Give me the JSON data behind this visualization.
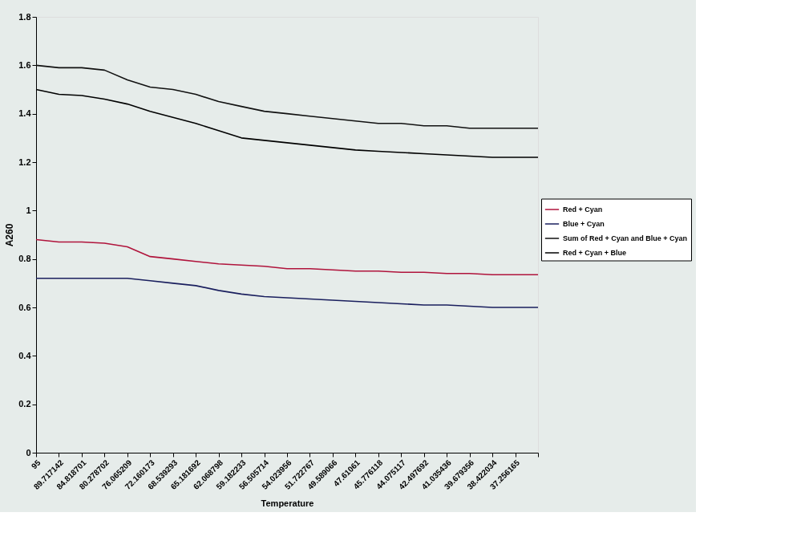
{
  "chart_data": {
    "type": "line",
    "xlabel": "Temperature",
    "ylabel": "A260",
    "categories": [
      "95",
      "89.717142",
      "84.818701",
      "80.278702",
      "76.065209",
      "72.160173",
      "68.539293",
      "65.181692",
      "62.068798",
      "59.182233",
      "56.505714",
      "54.023956",
      "51.722767",
      "49.589066",
      "47.61061",
      "45.776118",
      "44.075117",
      "42.497692",
      "41.035436",
      "39.679356",
      "38.422034",
      "37.256165",
      null
    ],
    "series": [
      {
        "name": "Red + Cyan",
        "color": "#b0143c",
        "values": [
          0.88,
          0.87,
          0.87,
          0.865,
          0.85,
          0.81,
          0.8,
          0.79,
          0.78,
          0.775,
          0.77,
          0.76,
          0.76,
          0.755,
          0.75,
          0.75,
          0.745,
          0.745,
          0.74,
          0.74,
          0.735,
          0.735,
          0.735
        ]
      },
      {
        "name": "Blue + Cyan",
        "color": "#1a1f5e",
        "values": [
          0.72,
          0.72,
          0.72,
          0.72,
          0.72,
          0.71,
          0.7,
          0.69,
          0.67,
          0.655,
          0.645,
          0.64,
          0.635,
          0.63,
          0.625,
          0.62,
          0.615,
          0.61,
          0.61,
          0.605,
          0.6,
          0.6,
          0.6
        ]
      },
      {
        "name": "Sum of Red + Cyan and Blue + Cyan",
        "color": "#111111",
        "values": [
          1.6,
          1.59,
          1.59,
          1.58,
          1.54,
          1.51,
          1.5,
          1.48,
          1.45,
          1.43,
          1.41,
          1.4,
          1.39,
          1.38,
          1.37,
          1.36,
          1.36,
          1.35,
          1.35,
          1.34,
          1.34,
          1.34,
          1.34
        ]
      },
      {
        "name": "Red + Cyan + Blue",
        "color": "#000000",
        "values": [
          1.5,
          1.48,
          1.475,
          1.46,
          1.44,
          1.41,
          1.385,
          1.36,
          1.33,
          1.3,
          1.29,
          1.28,
          1.27,
          1.26,
          1.25,
          1.245,
          1.24,
          1.235,
          1.23,
          1.225,
          1.22,
          1.22,
          1.22
        ]
      }
    ],
    "ylim": [
      0,
      1.8
    ],
    "yticks": [
      0,
      0.2,
      0.4,
      0.6,
      0.8,
      1,
      1.2,
      1.4,
      1.6,
      1.8
    ],
    "grid": false,
    "legend": "right",
    "marker": "none",
    "line_style": "solid"
  }
}
